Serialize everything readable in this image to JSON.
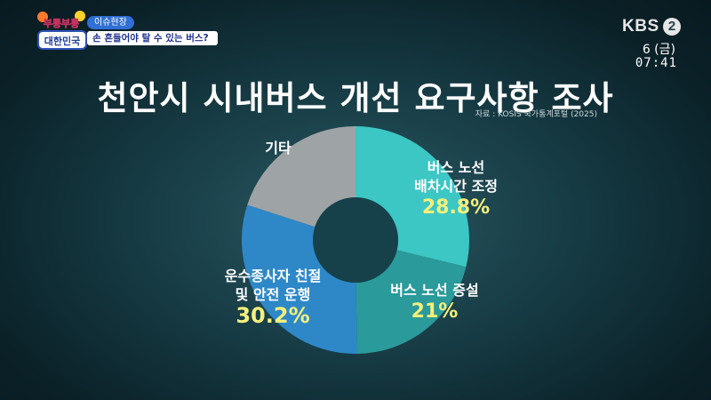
{
  "program": {
    "logo_top": "부릉부릉",
    "logo_bottom": "대한민국",
    "segment_tag": "이슈현장",
    "segment_title": "손 흔들어야 탈 수 있는 버스?"
  },
  "broadcaster": {
    "channel": "KBS",
    "channel_number": "2",
    "date": "6 (금)",
    "time": "07:41"
  },
  "source_note": "자료 : KOSIS 국가통계포털 (2025)",
  "chart_data": {
    "type": "pie",
    "donut": true,
    "title": "천안시 시내버스 개선 요구사항 조사",
    "slices": [
      {
        "label_line1": "버스 노선",
        "label_line2": "배차시간 조정",
        "value": 28.8,
        "value_label": "28.8%",
        "color": "#3cc7c4"
      },
      {
        "label_line1": "버스 노선 증설",
        "label_line2": "",
        "value": 21,
        "value_label": "21%",
        "color": "#2a9a9a"
      },
      {
        "label_line1": "운수종사자 친절",
        "label_line2": "및 안전 운행",
        "value": 30.2,
        "value_label": "30.2%",
        "color": "#2e88c8"
      },
      {
        "label_line1": "기타",
        "label_line2": "",
        "value": 20,
        "value_label": "",
        "color": "#9ea3a6"
      }
    ]
  }
}
